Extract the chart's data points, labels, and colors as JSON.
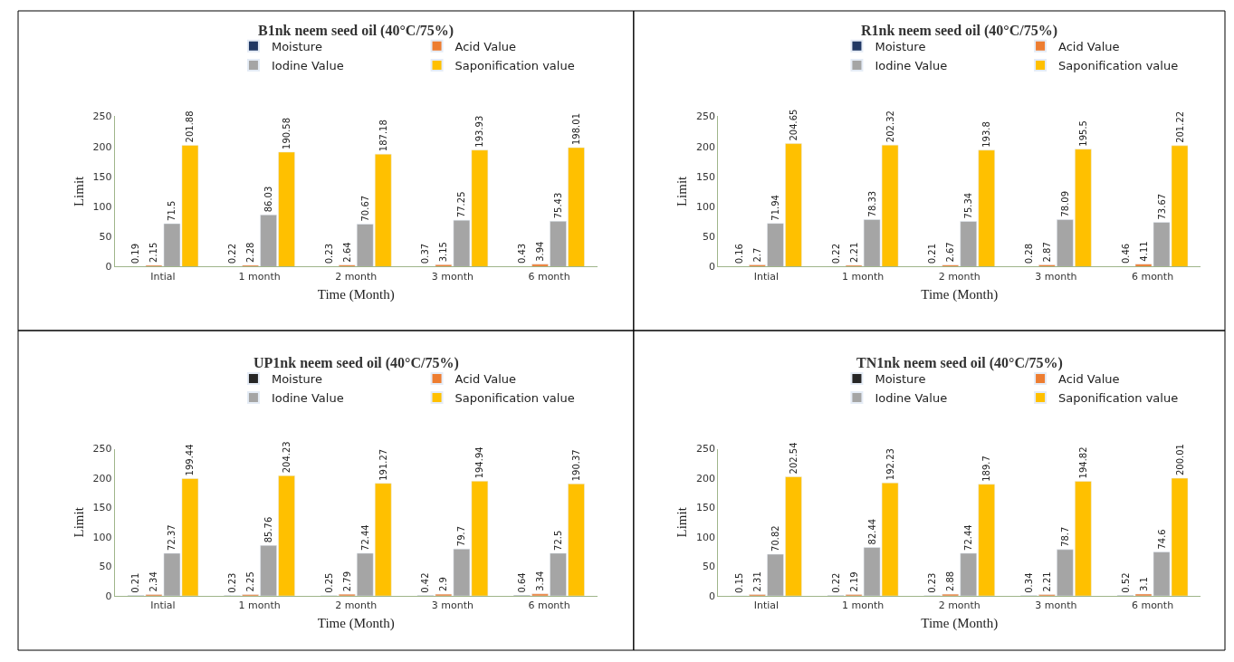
{
  "chart_data": [
    {
      "type": "bar",
      "title": "B1nk neem seed oil (40°C/75%)",
      "xlabel": "Time (Month)",
      "ylabel": "Limit",
      "categories": [
        "Intial",
        "1 month",
        "2 month",
        "3 month",
        "6 month"
      ],
      "ylim": [
        0,
        250
      ],
      "yticks": [
        0,
        50,
        100,
        150,
        200,
        250
      ],
      "grid": false,
      "legend": "top",
      "data_labels": true,
      "series": [
        {
          "name": "Moisture",
          "color": "#203864",
          "values": [
            0.19,
            0.22,
            0.23,
            0.37,
            0.43
          ]
        },
        {
          "name": "Acid Value",
          "color": "#ed7d31",
          "values": [
            2.15,
            2.28,
            2.64,
            3.15,
            3.94
          ]
        },
        {
          "name": "Iodine Value",
          "color": "#a5a5a5",
          "values": [
            71.5,
            86.03,
            70.67,
            77.25,
            75.43
          ]
        },
        {
          "name": "Saponification value",
          "color": "#ffc000",
          "values": [
            201.88,
            190.58,
            187.18,
            193.93,
            198.01
          ]
        }
      ]
    },
    {
      "type": "bar",
      "title": "R1nk neem seed oil (40°C/75%)",
      "xlabel": "Time (Month)",
      "ylabel": "Limit",
      "categories": [
        "Intial",
        "1 month",
        "2 month",
        "3 month",
        "6 month"
      ],
      "ylim": [
        0,
        250
      ],
      "yticks": [
        0,
        50,
        100,
        150,
        200,
        250
      ],
      "grid": false,
      "legend": "top",
      "data_labels": true,
      "series": [
        {
          "name": "Moisture",
          "color": "#203864",
          "values": [
            0.16,
            0.22,
            0.21,
            0.28,
            0.46
          ]
        },
        {
          "name": "Acid Value",
          "color": "#ed7d31",
          "values": [
            2.7,
            2.21,
            2.67,
            2.87,
            4.11
          ]
        },
        {
          "name": "Iodine Value",
          "color": "#a5a5a5",
          "values": [
            71.94,
            78.33,
            75.34,
            78.09,
            73.67
          ]
        },
        {
          "name": "Saponification value",
          "color": "#ffc000",
          "values": [
            204.65,
            202.32,
            193.8,
            195.5,
            201.22
          ]
        }
      ]
    },
    {
      "type": "bar",
      "title": "UP1nk neem seed oil (40°C/75%)",
      "xlabel": "Time (Month)",
      "ylabel": "Limit",
      "categories": [
        "Intial",
        "1 month",
        "2 month",
        "3 month",
        "6 month"
      ],
      "ylim": [
        0,
        250
      ],
      "yticks": [
        0,
        50,
        100,
        150,
        200,
        250
      ],
      "grid": false,
      "legend": "top",
      "data_labels": true,
      "series": [
        {
          "name": "Moisture",
          "color": "#262626",
          "values": [
            0.21,
            0.23,
            0.25,
            0.42,
            0.64
          ]
        },
        {
          "name": "Acid Value",
          "color": "#ed7d31",
          "values": [
            2.34,
            2.25,
            2.79,
            2.9,
            3.34
          ]
        },
        {
          "name": "Iodine Value",
          "color": "#a5a5a5",
          "values": [
            72.37,
            85.76,
            72.44,
            79.7,
            72.5
          ]
        },
        {
          "name": "Saponification value",
          "color": "#ffc000",
          "values": [
            199.44,
            204.23,
            191.27,
            194.94,
            190.37
          ]
        }
      ]
    },
    {
      "type": "bar",
      "title": "TN1nk neem seed oil (40°C/75%)",
      "xlabel": "Time (Month)",
      "ylabel": "Limit",
      "categories": [
        "Intial",
        "1 month",
        "2 month",
        "3 month",
        "6 month"
      ],
      "ylim": [
        0,
        250
      ],
      "yticks": [
        0,
        50,
        100,
        150,
        200,
        250
      ],
      "grid": false,
      "legend": "top",
      "data_labels": true,
      "series": [
        {
          "name": "Moisture",
          "color": "#262626",
          "values": [
            0.15,
            0.22,
            0.23,
            0.34,
            0.52
          ]
        },
        {
          "name": "Acid Value",
          "color": "#ed7d31",
          "values": [
            2.31,
            2.19,
            2.88,
            2.21,
            3.1
          ]
        },
        {
          "name": "Iodine Value",
          "color": "#a5a5a5",
          "values": [
            70.82,
            82.44,
            72.44,
            78.7,
            74.6
          ]
        },
        {
          "name": "Saponification value",
          "color": "#ffc000",
          "values": [
            202.54,
            192.23,
            189.7,
            194.82,
            200.01
          ]
        }
      ]
    }
  ]
}
